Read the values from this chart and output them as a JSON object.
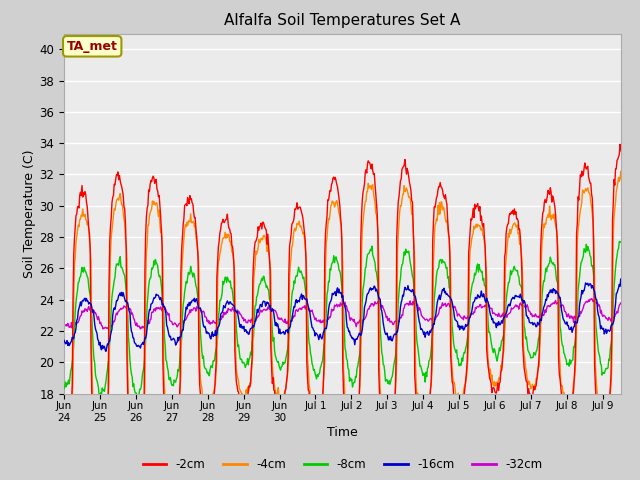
{
  "title": "Alfalfa Soil Temperatures Set A",
  "xlabel": "Time",
  "ylabel": "Soil Temperature (C)",
  "ylim": [
    18,
    41
  ],
  "yticks": [
    18,
    20,
    22,
    24,
    26,
    28,
    30,
    32,
    34,
    36,
    38,
    40
  ],
  "plot_bg_color": "#ebebeb",
  "fig_bg_color": "#d0d0d0",
  "legend_items": [
    "-2cm",
    "-4cm",
    "-8cm",
    "-16cm",
    "-32cm"
  ],
  "annotation_text": "TA_met",
  "annotation_bg": "#ffffcc",
  "annotation_border": "#999900",
  "annotation_text_color": "#990000",
  "xticklabels": [
    "Jun\n24",
    "Jun\n25",
    "Jun\n26",
    "Jun\n27",
    "Jun\n28",
    "Jun\n29",
    "Jun\n30",
    "Jul 1",
    "Jul 2",
    "Jul 3",
    "Jul 4",
    "Jul 5",
    "Jul 6",
    "Jul 7",
    "Jul 8",
    "Jul 9"
  ],
  "line_colors": [
    "#ff0000",
    "#ff8800",
    "#00cc00",
    "#0000cc",
    "#cc00cc"
  ],
  "grid_color": "#ffffff",
  "spine_color": "#aaaaaa"
}
